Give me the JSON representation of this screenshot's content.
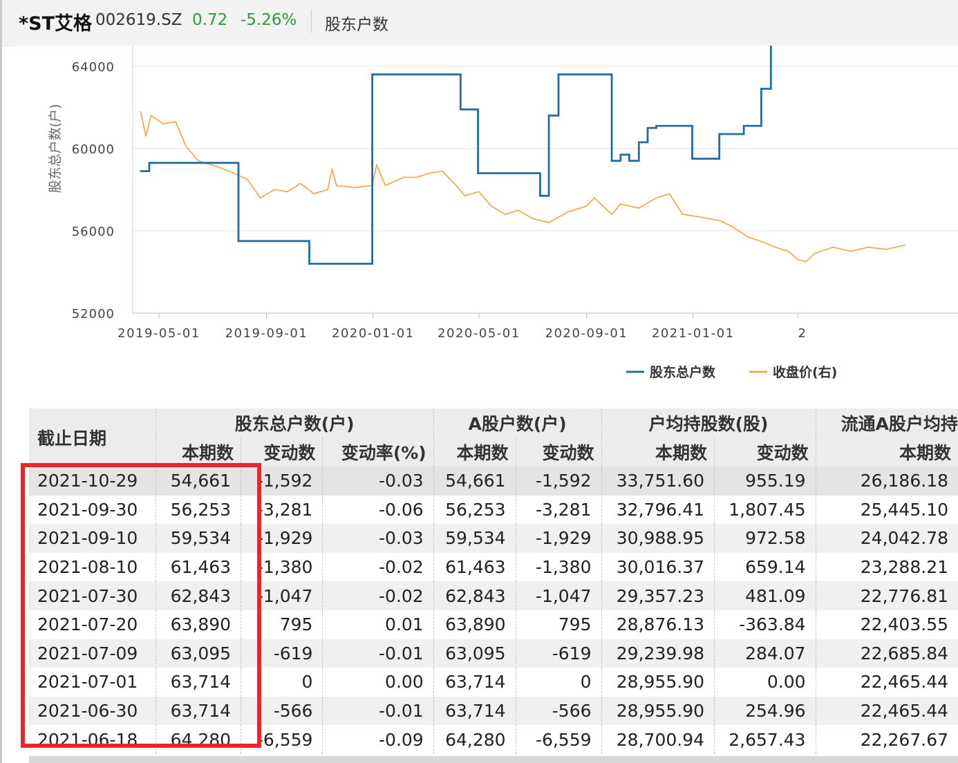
{
  "header": {
    "stock_name": "*ST艾格",
    "stock_code": "002619.SZ",
    "price": "0.72",
    "change_pct": "-5.26%",
    "section_title": "股东户数"
  },
  "colors": {
    "holders_line": "#1f6fa3",
    "price_line": "#f0ac4e",
    "highlight_box": "#e8262b",
    "down": "#2e9a3c"
  },
  "chart_data": {
    "type": "line",
    "ylabel": "股东总户数(户)",
    "ylim": [
      52000,
      65000
    ],
    "yticks": [
      52000,
      56000,
      60000,
      64000
    ],
    "xlim": [
      "2019-04-01",
      "2021-10-31"
    ],
    "xticks": [
      "2019-05-01",
      "2019-09-01",
      "2020-01-01",
      "2020-05-01",
      "2020-09-01",
      "2021-01-01",
      "2021-05-01"
    ],
    "xtick_labels": [
      "2019-05-01",
      "2019-09-01",
      "2020-01-01",
      "2020-05-01",
      "2020-09-01",
      "2021-01-01",
      "2"
    ],
    "legend": {
      "position": "bottom-right",
      "holders_label": "股东总户数",
      "price_label": "收盘价(右)"
    },
    "grid": "horizontal",
    "series": [
      {
        "name": "股东总户数",
        "step": true,
        "points": [
          [
            "2019-04-10",
            58900
          ],
          [
            "2019-04-20",
            59300
          ],
          [
            "2019-07-31",
            55500
          ],
          [
            "2019-10-20",
            54400
          ],
          [
            "2019-10-31",
            54400
          ],
          [
            "2019-12-31",
            63600
          ],
          [
            "2020-04-10",
            61900
          ],
          [
            "2020-04-30",
            58800
          ],
          [
            "2020-07-10",
            57700
          ],
          [
            "2020-07-20",
            61600
          ],
          [
            "2020-07-31",
            63600
          ],
          [
            "2020-09-30",
            59400
          ],
          [
            "2020-10-10",
            59700
          ],
          [
            "2020-10-20",
            59400
          ],
          [
            "2020-10-31",
            60300
          ],
          [
            "2020-11-10",
            61000
          ],
          [
            "2020-11-20",
            61100
          ],
          [
            "2020-12-31",
            59500
          ],
          [
            "2021-01-31",
            60700
          ],
          [
            "2021-02-28",
            61100
          ],
          [
            "2021-03-20",
            62900
          ],
          [
            "2021-03-31",
            65000
          ]
        ]
      },
      {
        "name": "收盘价(右)",
        "points": [
          [
            "2019-04-10",
            61800
          ],
          [
            "2019-04-16",
            60600
          ],
          [
            "2019-04-22",
            61600
          ],
          [
            "2019-05-06",
            61200
          ],
          [
            "2019-05-20",
            61300
          ],
          [
            "2019-06-01",
            60100
          ],
          [
            "2019-06-15",
            59400
          ],
          [
            "2019-07-01",
            59200
          ],
          [
            "2019-07-20",
            58900
          ],
          [
            "2019-08-10",
            58500
          ],
          [
            "2019-08-25",
            57600
          ],
          [
            "2019-09-10",
            58000
          ],
          [
            "2019-09-25",
            57900
          ],
          [
            "2019-10-10",
            58300
          ],
          [
            "2019-10-25",
            57800
          ],
          [
            "2019-11-10",
            58000
          ],
          [
            "2019-11-15",
            59000
          ],
          [
            "2019-11-20",
            58200
          ],
          [
            "2019-12-10",
            58100
          ],
          [
            "2019-12-31",
            58200
          ],
          [
            "2020-01-05",
            59200
          ],
          [
            "2020-01-15",
            58200
          ],
          [
            "2020-02-05",
            58600
          ],
          [
            "2020-02-20",
            58600
          ],
          [
            "2020-03-05",
            58800
          ],
          [
            "2020-03-20",
            58900
          ],
          [
            "2020-04-05",
            58200
          ],
          [
            "2020-04-15",
            57700
          ],
          [
            "2020-05-01",
            57900
          ],
          [
            "2020-05-15",
            57200
          ],
          [
            "2020-05-31",
            56800
          ],
          [
            "2020-06-15",
            57000
          ],
          [
            "2020-07-01",
            56600
          ],
          [
            "2020-07-20",
            56400
          ],
          [
            "2020-08-10",
            56900
          ],
          [
            "2020-09-01",
            57200
          ],
          [
            "2020-09-10",
            57600
          ],
          [
            "2020-09-30",
            56800
          ],
          [
            "2020-10-10",
            57300
          ],
          [
            "2020-10-31",
            57100
          ],
          [
            "2020-11-20",
            57600
          ],
          [
            "2020-12-05",
            57800
          ],
          [
            "2020-12-20",
            56800
          ],
          [
            "2021-01-05",
            56700
          ],
          [
            "2021-01-31",
            56500
          ],
          [
            "2021-02-15",
            56200
          ],
          [
            "2021-03-05",
            55700
          ],
          [
            "2021-03-25",
            55400
          ],
          [
            "2021-04-05",
            55200
          ],
          [
            "2021-04-20",
            55000
          ],
          [
            "2021-05-01",
            54600
          ],
          [
            "2021-05-10",
            54500
          ],
          [
            "2021-05-20",
            54900
          ],
          [
            "2021-06-10",
            55200
          ],
          [
            "2021-07-01",
            55000
          ],
          [
            "2021-07-20",
            55200
          ],
          [
            "2021-08-10",
            55100
          ],
          [
            "2021-08-31",
            55300
          ]
        ]
      }
    ]
  },
  "table": {
    "group_headers": [
      "股东总户数(户)",
      "A股户数(户)",
      "户均持股数(股)",
      "流通A股户均持"
    ],
    "date_header": "截止日期",
    "sub_headers": [
      "本期数",
      "变动数",
      "变动率(%)",
      "本期数",
      "变动数",
      "本期数",
      "变动数",
      "本期数"
    ],
    "rows": [
      [
        "2021-10-29",
        "54,661",
        "-1,592",
        "-0.03",
        "54,661",
        "-1,592",
        "33,751.60",
        "955.19",
        "26,186.18"
      ],
      [
        "2021-09-30",
        "56,253",
        "-3,281",
        "-0.06",
        "56,253",
        "-3,281",
        "32,796.41",
        "1,807.45",
        "25,445.10"
      ],
      [
        "2021-09-10",
        "59,534",
        "-1,929",
        "-0.03",
        "59,534",
        "-1,929",
        "30,988.95",
        "972.58",
        "24,042.78"
      ],
      [
        "2021-08-10",
        "61,463",
        "-1,380",
        "-0.02",
        "61,463",
        "-1,380",
        "30,016.37",
        "659.14",
        "23,288.21"
      ],
      [
        "2021-07-30",
        "62,843",
        "-1,047",
        "-0.02",
        "62,843",
        "-1,047",
        "29,357.23",
        "481.09",
        "22,776.81"
      ],
      [
        "2021-07-20",
        "63,890",
        "795",
        "0.01",
        "63,890",
        "795",
        "28,876.13",
        "-363.84",
        "22,403.55"
      ],
      [
        "2021-07-09",
        "63,095",
        "-619",
        "-0.01",
        "63,095",
        "-619",
        "29,239.98",
        "284.07",
        "22,685.84"
      ],
      [
        "2021-07-01",
        "63,714",
        "0",
        "0.00",
        "63,714",
        "0",
        "28,955.90",
        "0.00",
        "22,465.44"
      ],
      [
        "2021-06-30",
        "63,714",
        "-566",
        "-0.01",
        "63,714",
        "-566",
        "28,955.90",
        "254.96",
        "22,465.44"
      ],
      [
        "2021-06-18",
        "64,280",
        "-6,559",
        "-0.09",
        "64,280",
        "-6,559",
        "28,700.94",
        "2,657.43",
        "22,267.67"
      ]
    ]
  }
}
